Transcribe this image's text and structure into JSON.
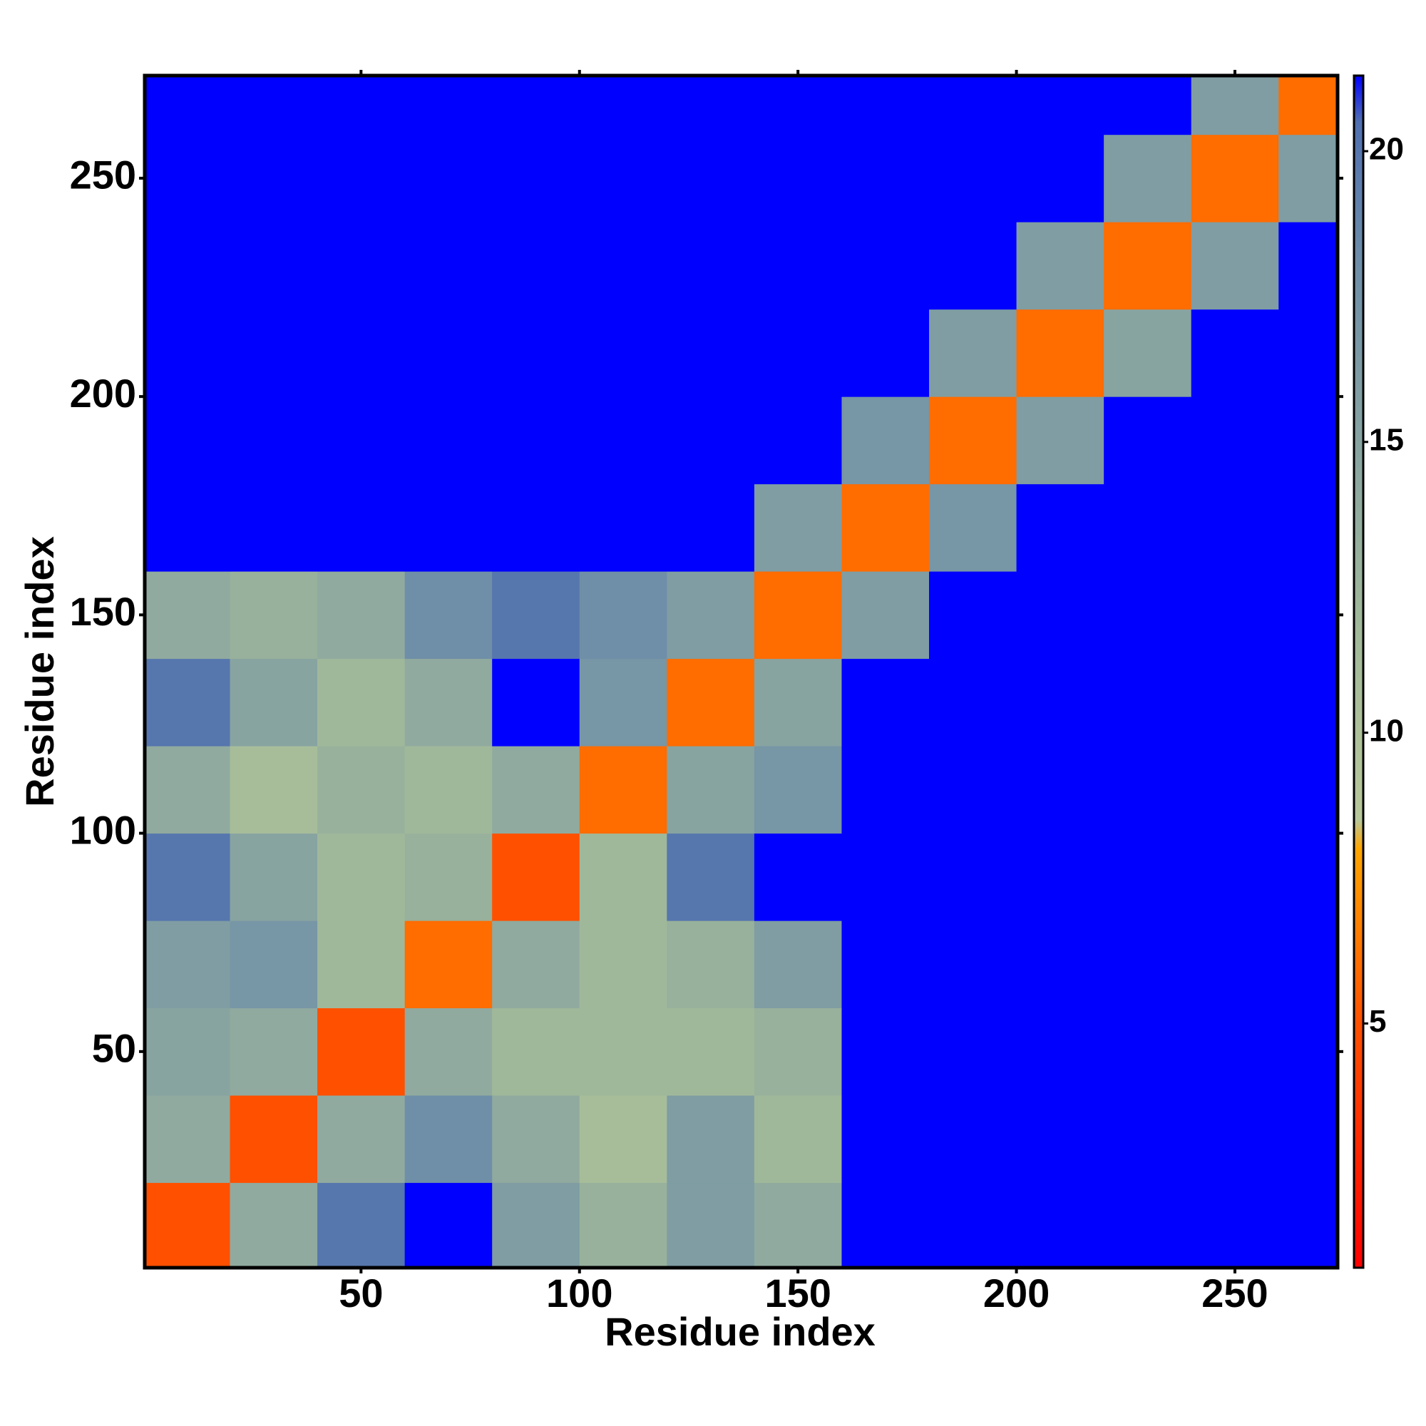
{
  "chart_data": {
    "type": "heatmap",
    "xlabel": "Residue index",
    "ylabel": "Residue index",
    "x": [
      10,
      30,
      50,
      70,
      90,
      110,
      130,
      150,
      170,
      190,
      210,
      230,
      250,
      270
    ],
    "y": [
      10,
      30,
      50,
      70,
      90,
      110,
      130,
      150,
      170,
      190,
      210,
      230,
      250,
      270
    ],
    "z": [
      [
        5,
        14,
        20,
        22,
        16,
        13,
        16,
        14,
        22,
        22,
        22,
        22,
        22,
        22
      ],
      [
        14,
        5,
        14,
        18,
        14,
        11,
        16,
        12,
        22,
        22,
        22,
        22,
        22,
        22
      ],
      [
        15,
        14,
        5,
        14,
        12,
        12,
        12,
        13,
        22,
        22,
        22,
        22,
        22,
        22
      ],
      [
        16,
        17,
        12,
        6,
        14,
        12,
        13,
        16,
        22,
        22,
        22,
        22,
        22,
        22
      ],
      [
        20,
        15,
        12,
        13,
        5,
        12,
        20,
        22,
        22,
        22,
        22,
        22,
        22,
        22
      ],
      [
        14,
        11,
        13,
        12,
        14,
        6,
        15,
        17,
        22,
        22,
        22,
        22,
        22,
        22
      ],
      [
        20,
        15,
        12,
        14,
        22,
        17,
        6,
        15,
        22,
        22,
        22,
        22,
        22,
        22
      ],
      [
        14,
        13,
        14,
        18,
        20,
        18,
        16,
        6,
        16,
        22,
        22,
        22,
        22,
        22
      ],
      [
        22,
        22,
        22,
        22,
        22,
        22,
        22,
        16,
        6,
        17,
        22,
        22,
        22,
        22
      ],
      [
        22,
        22,
        22,
        22,
        22,
        22,
        22,
        22,
        17,
        6,
        16,
        22,
        22,
        22
      ],
      [
        22,
        22,
        22,
        22,
        22,
        22,
        22,
        22,
        22,
        16,
        6,
        15,
        22,
        22
      ],
      [
        22,
        22,
        22,
        22,
        22,
        22,
        22,
        22,
        22,
        22,
        16,
        6,
        16,
        22
      ],
      [
        22,
        22,
        22,
        22,
        22,
        22,
        22,
        22,
        22,
        22,
        22,
        16,
        6,
        16
      ],
      [
        22,
        22,
        22,
        22,
        22,
        22,
        22,
        22,
        22,
        22,
        22,
        22,
        16,
        6
      ]
    ],
    "xlim": [
      0.5,
      273.5
    ],
    "ylim": [
      0.5,
      273.5
    ],
    "xticks": [
      50,
      100,
      150,
      200,
      250
    ],
    "yticks": [
      50,
      100,
      150,
      200,
      250
    ],
    "colorbar": {
      "lim": [
        0.8,
        21.3
      ],
      "ticks": [
        5,
        10,
        15,
        20
      ],
      "colorscale": [
        [
          0.8,
          "#ff0000"
        ],
        [
          5,
          "#ff5000"
        ],
        [
          8,
          "#ffa500"
        ],
        [
          8.5,
          "#b8c89a"
        ],
        [
          12,
          "#a0b89a"
        ],
        [
          18,
          "#6f8fa8"
        ],
        [
          20.5,
          "#5070b0"
        ],
        [
          21.3,
          "#0000ff"
        ]
      ]
    }
  }
}
